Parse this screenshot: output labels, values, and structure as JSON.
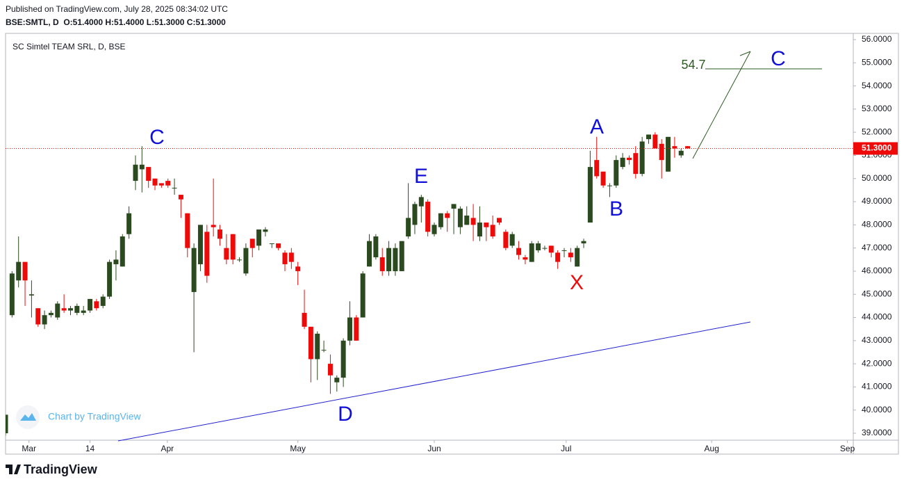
{
  "header": {
    "published": "Published on TradingView.com, July 28, 2025 08:34:02 UTC",
    "ohlc": "BSE:SMTL, D  O:51.4000 H:51.4000 L:51.3000 C:51.3000"
  },
  "watermark": "Chart by TradingView",
  "footer": {
    "brand": "TradingView"
  },
  "chart_data": {
    "type": "candlestick",
    "title": "SC Simtel TEAM SRL, D, BSE",
    "up_color": "#2b4a1f",
    "down_color": "#ef0a0a",
    "open": [
      39.0,
      44.1,
      45.6,
      46.4,
      44.95,
      44.4,
      43.7,
      44.1,
      44.0,
      44.4,
      44.3,
      44.2,
      44.2,
      44.3,
      44.7,
      44.5,
      44.9,
      46.3,
      46.2,
      47.6,
      49.9,
      50.4,
      50.5,
      50.0,
      49.8,
      49.9,
      49.6,
      49.3,
      48.5,
      45.1,
      46.3,
      47.7,
      48.0,
      47.8,
      47.0,
      47.6,
      46.5,
      45.9,
      47.4,
      47.1,
      47.7,
      47.2,
      47.2,
      46.8,
      46.8,
      46.2,
      44.2,
      43.6,
      42.2,
      42.6,
      42.0,
      41.2,
      41.4,
      43.0,
      44.0,
      44.0,
      46.2,
      46.6,
      46.6,
      46.0,
      46.0,
      46.0,
      47.5,
      48.0,
      48.8,
      49.0,
      47.6,
      47.9,
      48.5,
      48.7,
      47.9,
      48.0,
      48.3,
      47.5,
      48.1,
      48.0,
      48.3,
      47.7,
      47.1,
      47.0,
      46.6,
      46.4,
      46.9,
      47.0,
      47.1,
      46.8,
      46.9,
      46.8,
      46.2,
      47.2,
      48.1,
      50.8,
      50.3,
      49.7,
      49.7,
      50.5,
      50.9,
      51.1,
      50.2,
      51.7,
      51.9,
      51.5,
      50.3,
      51.4,
      51.0,
      51.4
    ],
    "high": [
      39.8,
      46.0,
      47.5,
      46.4,
      45.6,
      44.4,
      44.3,
      44.3,
      44.7,
      45.0,
      44.5,
      44.6,
      44.5,
      44.8,
      44.8,
      45.0,
      46.5,
      46.9,
      47.6,
      48.8,
      51.0,
      51.4,
      50.5,
      50.0,
      49.8,
      50.0,
      50.0,
      49.3,
      48.5,
      47.2,
      48.0,
      48.0,
      50.0,
      48.0,
      47.6,
      47.6,
      46.6,
      47.2,
      47.4,
      47.8,
      47.9,
      47.2,
      47.2,
      46.9,
      47.0,
      46.4,
      45.2,
      43.6,
      43.4,
      43.0,
      42.4,
      41.5,
      43.1,
      44.7,
      44.1,
      46.0,
      47.6,
      47.6,
      47.0,
      47.3,
      47.2,
      47.3,
      49.8,
      49.0,
      49.3,
      49.1,
      48.1,
      48.5,
      48.6,
      48.9,
      48.8,
      48.8,
      48.9,
      48.8,
      48.0,
      48.4,
      48.3,
      47.8,
      47.7,
      47.3,
      46.7,
      47.3,
      47.3,
      47.1,
      47.1,
      46.9,
      47.0,
      47.0,
      47.1,
      47.4,
      51.2,
      51.8,
      50.3,
      49.8,
      51.0,
      51.1,
      51.0,
      51.4,
      51.8,
      51.9,
      52.0,
      51.7,
      51.8,
      51.8,
      51.3,
      51.4
    ],
    "low": [
      38.9,
      44.0,
      45.3,
      44.5,
      44.0,
      43.6,
      43.5,
      44.0,
      43.9,
      44.2,
      44.1,
      44.1,
      44.1,
      44.2,
      44.3,
      44.4,
      44.8,
      45.6,
      46.2,
      47.4,
      49.5,
      49.4,
      49.6,
      49.5,
      49.6,
      49.6,
      49.3,
      48.3,
      46.6,
      42.5,
      46.0,
      45.5,
      47.5,
      47.1,
      46.3,
      46.3,
      46.4,
      45.8,
      46.6,
      46.9,
      47.5,
      47.0,
      46.9,
      46.0,
      46.1,
      45.4,
      43.5,
      41.2,
      41.3,
      42.5,
      40.7,
      40.8,
      41.0,
      42.8,
      43.0,
      44.0,
      46.2,
      46.5,
      45.8,
      45.8,
      45.8,
      46.0,
      47.4,
      47.6,
      48.1,
      47.5,
      47.5,
      47.8,
      47.7,
      47.6,
      47.6,
      48.0,
      47.3,
      47.3,
      47.3,
      47.4,
      48.0,
      46.9,
      47.0,
      46.5,
      46.3,
      46.4,
      46.8,
      46.9,
      46.6,
      46.1,
      46.6,
      46.4,
      46.2,
      47.0,
      48.1,
      50.0,
      49.6,
      49.2,
      49.6,
      50.4,
      50.6,
      50.0,
      50.1,
      51.5,
      51.3,
      50.0,
      50.3,
      50.9,
      50.9,
      51.3
    ],
    "close": [
      39.8,
      45.9,
      46.4,
      45.6,
      45.0,
      43.7,
      44.1,
      44.2,
      44.6,
      44.3,
      44.4,
      44.5,
      44.3,
      44.8,
      44.4,
      44.9,
      46.4,
      46.5,
      47.5,
      48.5,
      50.6,
      50.6,
      49.9,
      49.7,
      49.7,
      49.7,
      49.6,
      49.1,
      47.0,
      47.0,
      48.0,
      45.8,
      47.9,
      47.4,
      46.5,
      46.5,
      46.5,
      47.0,
      47.0,
      47.8,
      47.8,
      47.2,
      47.0,
      46.3,
      46.4,
      46.0,
      43.6,
      42.2,
      43.3,
      42.6,
      41.5,
      41.4,
      43.0,
      44.0,
      43.0,
      45.9,
      47.3,
      47.5,
      46.0,
      47.0,
      47.0,
      47.3,
      48.3,
      48.9,
      49.2,
      47.7,
      48.0,
      48.5,
      48.3,
      48.9,
      48.7,
      48.4,
      48.0,
      48.1,
      47.9,
      47.5,
      48.1,
      47.0,
      47.6,
      46.7,
      46.5,
      47.2,
      47.2,
      47.0,
      46.8,
      46.4,
      46.9,
      46.6,
      47.0,
      47.3,
      50.5,
      50.1,
      49.7,
      49.7,
      50.8,
      50.9,
      50.8,
      50.2,
      51.6,
      51.9,
      51.3,
      50.8,
      51.8,
      51.3,
      51.2,
      51.3
    ],
    "xlim": [
      0,
      130.5
    ],
    "xticks": [
      {
        "value": 3.6,
        "label": "Mar"
      },
      {
        "value": 13.0,
        "label": "14"
      },
      {
        "value": 24.9,
        "label": "Apr"
      },
      {
        "value": 45.0,
        "label": "May"
      },
      {
        "value": 66.0,
        "label": "Jun"
      },
      {
        "value": 86.3,
        "label": "Jul"
      },
      {
        "value": 108.7,
        "label": "Aug"
      },
      {
        "value": 129.6,
        "label": "Sep"
      }
    ],
    "ylim": [
      38.7,
      56.27
    ],
    "yticks": [
      {
        "value": 39,
        "label": "39.0000"
      },
      {
        "value": 40,
        "label": "40.0000"
      },
      {
        "value": 41,
        "label": "41.0000"
      },
      {
        "value": 42,
        "label": "42.0000"
      },
      {
        "value": 43,
        "label": "43.0000"
      },
      {
        "value": 44,
        "label": "44.0000"
      },
      {
        "value": 45,
        "label": "45.0000"
      },
      {
        "value": 46,
        "label": "46.0000"
      },
      {
        "value": 47,
        "label": "47.0000"
      },
      {
        "value": 48,
        "label": "48.0000"
      },
      {
        "value": 49,
        "label": "49.0000"
      },
      {
        "value": 50,
        "label": "50.0000"
      },
      {
        "value": 51,
        "label": "51.0000"
      },
      {
        "value": 52,
        "label": "52.0000"
      },
      {
        "value": 53,
        "label": "53.0000"
      },
      {
        "value": 54,
        "label": "54.0000"
      },
      {
        "value": 55,
        "label": "55.0000"
      },
      {
        "value": 56,
        "label": "56.0000"
      }
    ],
    "last_price": {
      "value": 51.3,
      "label": "51.3000",
      "color": "#ef0a0a"
    },
    "annotations": [
      {
        "text": "C",
        "color": "#1010d8"
      },
      {
        "text": "E",
        "color": "#1010d8"
      },
      {
        "text": "A",
        "color": "#1010d8"
      },
      {
        "text": "B",
        "color": "#1010d8"
      },
      {
        "text": "X",
        "color": "#ef0a0a"
      },
      {
        "text": "D",
        "color": "#1010d8"
      },
      {
        "text": "C",
        "color": "#1010d8"
      },
      {
        "text": "54.7",
        "color": "#2b5a1f"
      }
    ]
  }
}
